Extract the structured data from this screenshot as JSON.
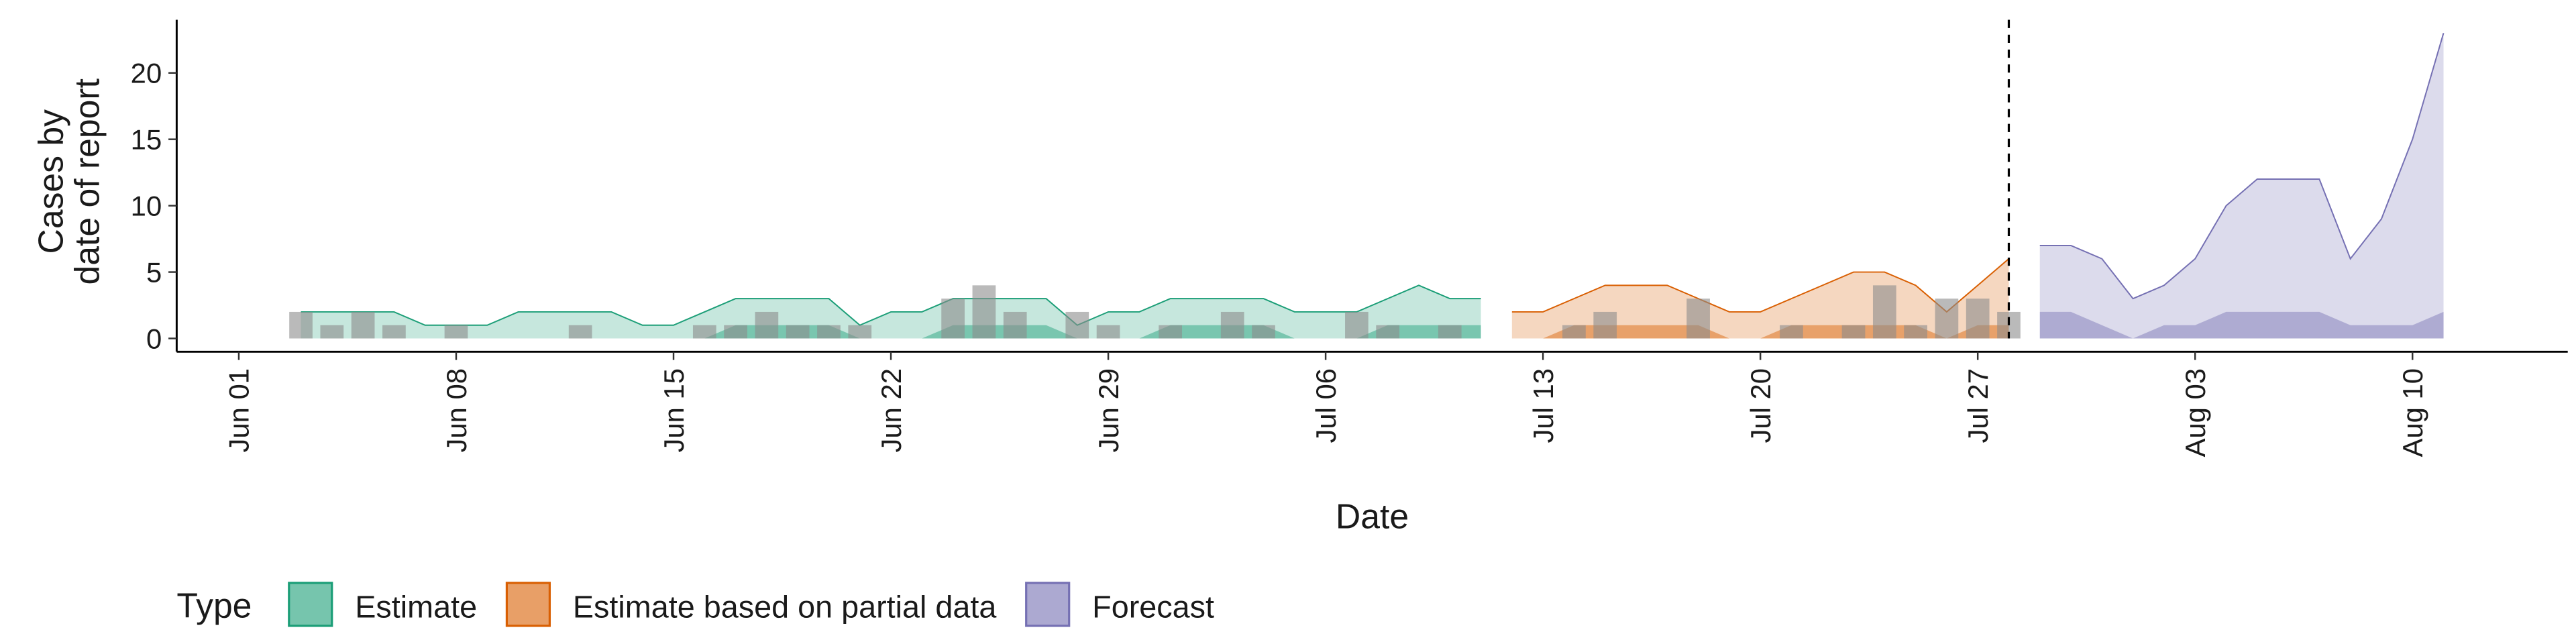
{
  "chart_data": {
    "type": "area",
    "x_label": "Date",
    "y_label": [
      "Cases by",
      "date of report"
    ],
    "legend_title": "Type",
    "legend_position": "bottom",
    "xlim": [
      "05-30",
      "08-15"
    ],
    "ylim": [
      -1,
      24
    ],
    "yticks": [
      0,
      5,
      10,
      15,
      20
    ],
    "xticks": [
      {
        "value": "06-01",
        "label": "Jun 01"
      },
      {
        "value": "06-08",
        "label": "Jun 08"
      },
      {
        "value": "06-15",
        "label": "Jun 15"
      },
      {
        "value": "06-22",
        "label": "Jun 22"
      },
      {
        "value": "06-29",
        "label": "Jun 29"
      },
      {
        "value": "07-06",
        "label": "Jul 06"
      },
      {
        "value": "07-13",
        "label": "Jul 13"
      },
      {
        "value": "07-20",
        "label": "Jul 20"
      },
      {
        "value": "07-27",
        "label": "Jul 27"
      },
      {
        "value": "08-03",
        "label": "Aug 03"
      },
      {
        "value": "08-10",
        "label": "Aug 10"
      }
    ],
    "vline": "07-28",
    "series": [
      {
        "name": "Estimate",
        "color": "#1b9e77",
        "x": [
          "06-03",
          "06-04",
          "06-05",
          "06-06",
          "06-07",
          "06-08",
          "06-09",
          "06-10",
          "06-11",
          "06-12",
          "06-13",
          "06-14",
          "06-15",
          "06-16",
          "06-17",
          "06-18",
          "06-19",
          "06-20",
          "06-21",
          "06-22",
          "06-23",
          "06-24",
          "06-25",
          "06-26",
          "06-27",
          "06-28",
          "06-29",
          "06-30",
          "07-01",
          "07-02",
          "07-03",
          "07-04",
          "07-05",
          "07-06",
          "07-07",
          "07-08",
          "07-09",
          "07-10",
          "07-11"
        ],
        "values": [
          2,
          2,
          2,
          2,
          1,
          1,
          1,
          2,
          2,
          2,
          2,
          1,
          1,
          2,
          3,
          3,
          3,
          3,
          1,
          2,
          2,
          3,
          3,
          3,
          3,
          1,
          2,
          2,
          3,
          3,
          3,
          3,
          2,
          2,
          2,
          3,
          4,
          3,
          3
        ],
        "inner_values": [
          0,
          0,
          0,
          0,
          0,
          0,
          0,
          0,
          0,
          0,
          0,
          0,
          0,
          0,
          1,
          1,
          1,
          1,
          0,
          0,
          0,
          1,
          1,
          1,
          1,
          0,
          0,
          0,
          1,
          1,
          1,
          1,
          0,
          0,
          0,
          1,
          1,
          1,
          1
        ]
      },
      {
        "name": "Estimate based on partial data",
        "color": "#d95f02",
        "x": [
          "07-12",
          "07-13",
          "07-14",
          "07-15",
          "07-16",
          "07-17",
          "07-18",
          "07-19",
          "07-20",
          "07-21",
          "07-22",
          "07-23",
          "07-24",
          "07-25",
          "07-26",
          "07-27",
          "07-28"
        ],
        "values": [
          2,
          2,
          3,
          4,
          4,
          4,
          3,
          2,
          2,
          3,
          4,
          5,
          5,
          4,
          2,
          4,
          6
        ],
        "inner_values": [
          0,
          0,
          1,
          1,
          1,
          1,
          1,
          0,
          0,
          1,
          1,
          1,
          1,
          1,
          0,
          1,
          1
        ]
      },
      {
        "name": "Forecast",
        "color": "#7570b3",
        "x": [
          "07-29",
          "07-30",
          "07-31",
          "08-01",
          "08-02",
          "08-03",
          "08-04",
          "08-05",
          "08-06",
          "08-07",
          "08-08",
          "08-09",
          "08-10",
          "08-11"
        ],
        "values": [
          7,
          7,
          6,
          3,
          4,
          6,
          10,
          12,
          12,
          12,
          6,
          9,
          15,
          23
        ],
        "inner_values": [
          2,
          2,
          1,
          0,
          1,
          1,
          2,
          2,
          2,
          2,
          1,
          1,
          1,
          2
        ]
      }
    ],
    "bars": {
      "color": "#8c8c8c",
      "x": [
        "06-03",
        "06-04",
        "06-05",
        "06-06",
        "06-08",
        "06-12",
        "06-16",
        "06-17",
        "06-18",
        "06-19",
        "06-20",
        "06-21",
        "06-24",
        "06-25",
        "06-26",
        "06-28",
        "06-29",
        "07-01",
        "07-03",
        "07-04",
        "07-07",
        "07-08",
        "07-10",
        "07-14",
        "07-15",
        "07-18",
        "07-21",
        "07-23",
        "07-24",
        "07-25",
        "07-26",
        "07-27",
        "07-28"
      ],
      "values": [
        2,
        1,
        2,
        1,
        1,
        1,
        1,
        1,
        2,
        1,
        1,
        1,
        3,
        4,
        2,
        2,
        1,
        1,
        2,
        1,
        2,
        1,
        1,
        1,
        2,
        3,
        1,
        1,
        4,
        1,
        3,
        3,
        2
      ]
    }
  }
}
